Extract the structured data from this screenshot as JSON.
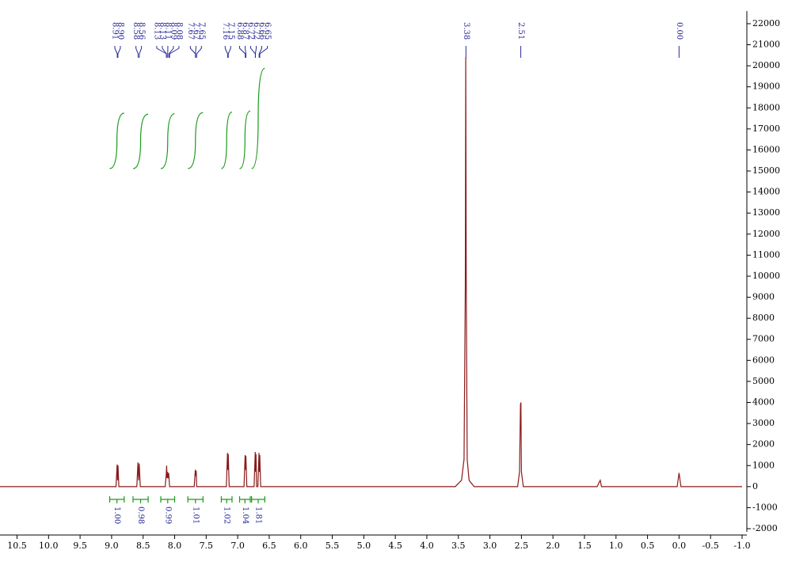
{
  "chart_data": {
    "type": "nmr",
    "xlim": [
      10.77,
      -1.0
    ],
    "ylim": [
      -2150,
      22600
    ],
    "xticks": [
      10.5,
      {
        "value": 10,
        "label": "10.0"
      },
      9.5,
      {
        "value": 9,
        "label": "9.0"
      },
      8.5,
      {
        "value": 8,
        "label": "8.0"
      },
      7.5,
      {
        "value": 7,
        "label": "7.0"
      },
      6.5,
      {
        "value": 6,
        "label": "6.0"
      },
      5.5,
      {
        "value": 5,
        "label": "5.0"
      },
      4.5,
      {
        "value": 4,
        "label": "4.0"
      },
      3.5,
      {
        "value": 3,
        "label": "3.0"
      },
      2.5,
      {
        "value": 2,
        "label": "2.0"
      },
      1.5,
      {
        "value": 1,
        "label": "1.0"
      },
      0.5,
      {
        "value": 0,
        "label": "0.0"
      },
      -0.5,
      {
        "value": -1,
        "label": "-1.0"
      }
    ],
    "yticks": [
      -2000,
      -1000,
      0,
      1000,
      2000,
      3000,
      4000,
      5000,
      6000,
      7000,
      8000,
      9000,
      10000,
      11000,
      12000,
      13000,
      14000,
      15000,
      16000,
      17000,
      18000,
      19000,
      20000,
      21000,
      22000
    ],
    "spectrum": {
      "color": "#8b1a1a",
      "x": [
        10.77,
        8.93,
        8.912,
        8.905,
        8.898,
        8.885,
        8.6,
        8.582,
        8.572,
        8.562,
        8.545,
        8.15,
        8.132,
        8.127,
        8.12,
        8.112,
        8.105,
        8.095,
        8.08,
        7.69,
        7.672,
        7.665,
        7.658,
        7.65,
        7.18,
        7.162,
        7.156,
        7.15,
        7.135,
        6.9,
        6.882,
        6.876,
        6.87,
        6.855,
        6.74,
        6.722,
        6.716,
        6.71,
        6.7,
        6.68,
        6.662,
        6.656,
        6.65,
        6.635,
        3.55,
        3.45,
        3.41,
        3.39,
        3.383,
        3.375,
        3.36,
        3.33,
        3.25,
        2.56,
        2.53,
        2.515,
        2.508,
        2.5,
        2.47,
        1.3,
        1.25,
        1.23,
        0.03,
        0.0,
        -0.03,
        -1.0
      ],
      "values": [
        0,
        0,
        1050,
        300,
        1000,
        0,
        0,
        1150,
        300,
        1100,
        0,
        0,
        650,
        1000,
        400,
        700,
        400,
        650,
        0,
        0,
        800,
        500,
        750,
        0,
        0,
        1600,
        800,
        1550,
        0,
        0,
        1500,
        800,
        1450,
        0,
        0,
        1650,
        700,
        1550,
        0,
        0,
        1600,
        700,
        1500,
        0,
        0,
        300,
        1300,
        9500,
        20400,
        9500,
        1300,
        300,
        0,
        0,
        700,
        3900,
        4000,
        700,
        0,
        0,
        300,
        0,
        0,
        650,
        0,
        0
      ]
    },
    "peaks_color": "#2a2a9a",
    "peaks": [
      8.91,
      {
        "value": 8.9,
        "label": "8.90"
      },
      8.58,
      8.56,
      8.13,
      8.13,
      8.11,
      8.09,
      8.08,
      7.67,
      7.67,
      7.65,
      7.16,
      7.15,
      6.88,
      6.87,
      6.72,
      6.72,
      6.66,
      6.65,
      3.38,
      2.51,
      {
        "value": 0,
        "label": "0.00"
      }
    ],
    "integrals": {
      "color": "#1a9a1a",
      "label_color": "#2a2a9a",
      "ranges": [
        [
          9.03,
          8.8
        ],
        [
          8.66,
          8.42
        ],
        [
          8.22,
          8.0
        ],
        [
          7.79,
          7.55
        ],
        [
          7.26,
          7.09
        ],
        [
          6.97,
          6.8
        ],
        [
          6.78,
          6.57
        ]
      ],
      "values": [
        1.0,
        0.98,
        0.99,
        1.01,
        1.02,
        1.04,
        1.81
      ],
      "value_labels": [
        "1.00",
        "0.98",
        "0.99",
        "1.01",
        "1.02",
        "1.04",
        "1.81"
      ]
    }
  }
}
